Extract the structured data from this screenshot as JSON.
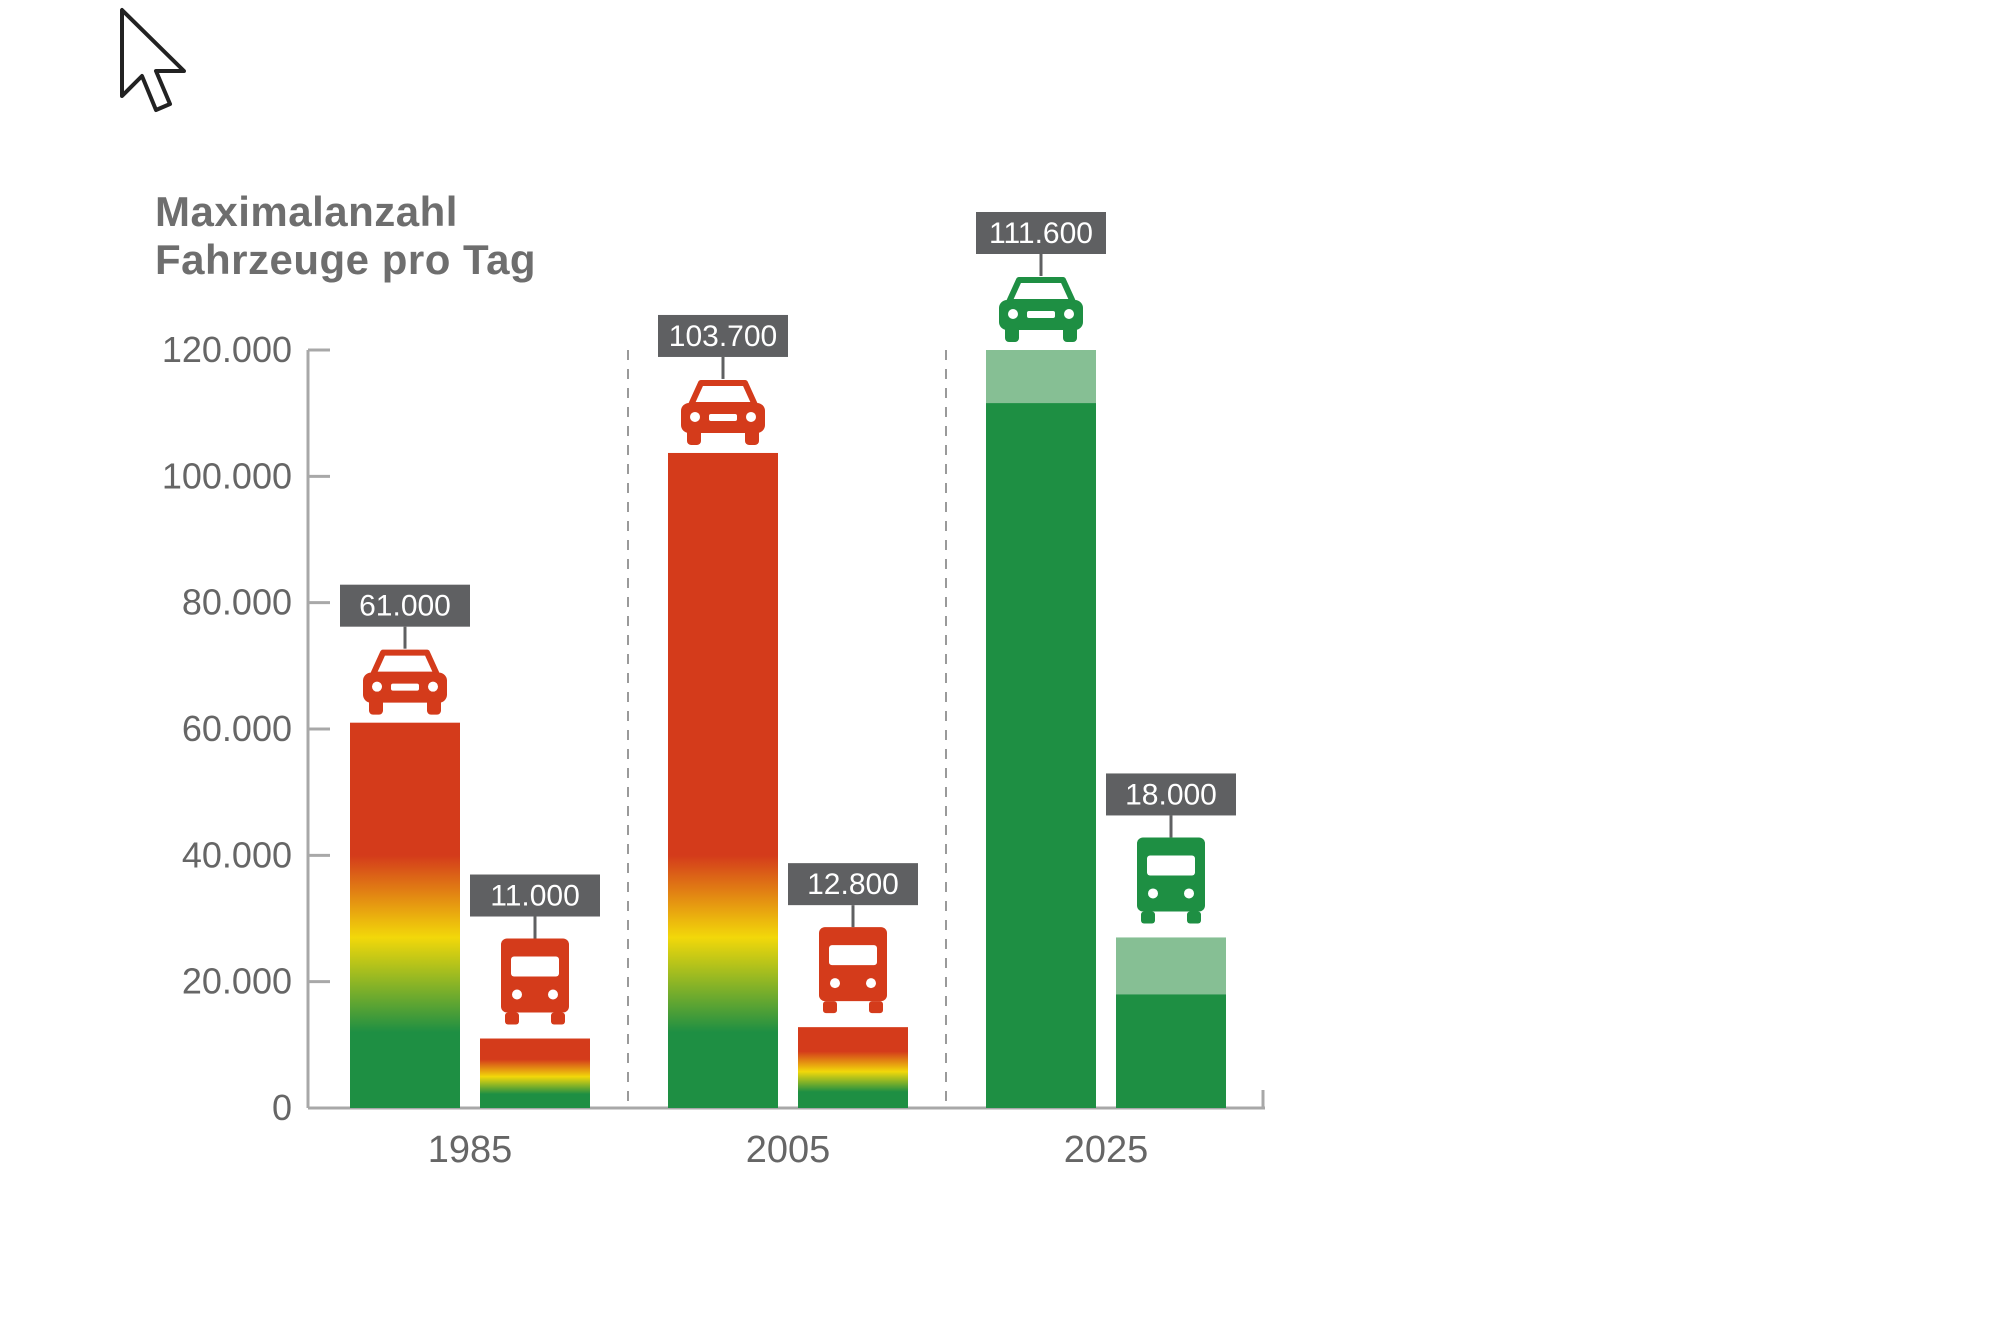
{
  "colors": {
    "red": "#d43b1b",
    "yellow": "#f2d80a",
    "green": "#1e8f43",
    "light_green": "#86bf94",
    "axis": "#a8a8a8",
    "label_box": "#5f6062",
    "text": "#666666"
  },
  "chart_data": {
    "type": "bar",
    "title_lines": [
      "Maximalanzahl",
      "Fahrzeuge pro Tag"
    ],
    "ylim": [
      0,
      120000
    ],
    "yticks": [
      {
        "value": 0,
        "label": "0"
      },
      {
        "value": 20000,
        "label": "20.000"
      },
      {
        "value": 40000,
        "label": "40.000"
      },
      {
        "value": 60000,
        "label": "60.000"
      },
      {
        "value": 80000,
        "label": "80.000"
      },
      {
        "value": 100000,
        "label": "100.000"
      },
      {
        "value": 120000,
        "label": "120.000"
      }
    ],
    "categories": [
      "1985",
      "2005",
      "2025"
    ],
    "series": [
      {
        "icon": "car-icon",
        "values": [
          61000,
          103700,
          111600
        ],
        "labels": [
          "61.000",
          "103.700",
          "111.600"
        ]
      },
      {
        "icon": "truck-icon",
        "values": [
          11000,
          12800,
          18000
        ],
        "labels": [
          "11.000",
          "12.800",
          "18.000"
        ]
      }
    ],
    "capacity_overlay_2025": {
      "car": 120000,
      "truck": 27000
    }
  }
}
